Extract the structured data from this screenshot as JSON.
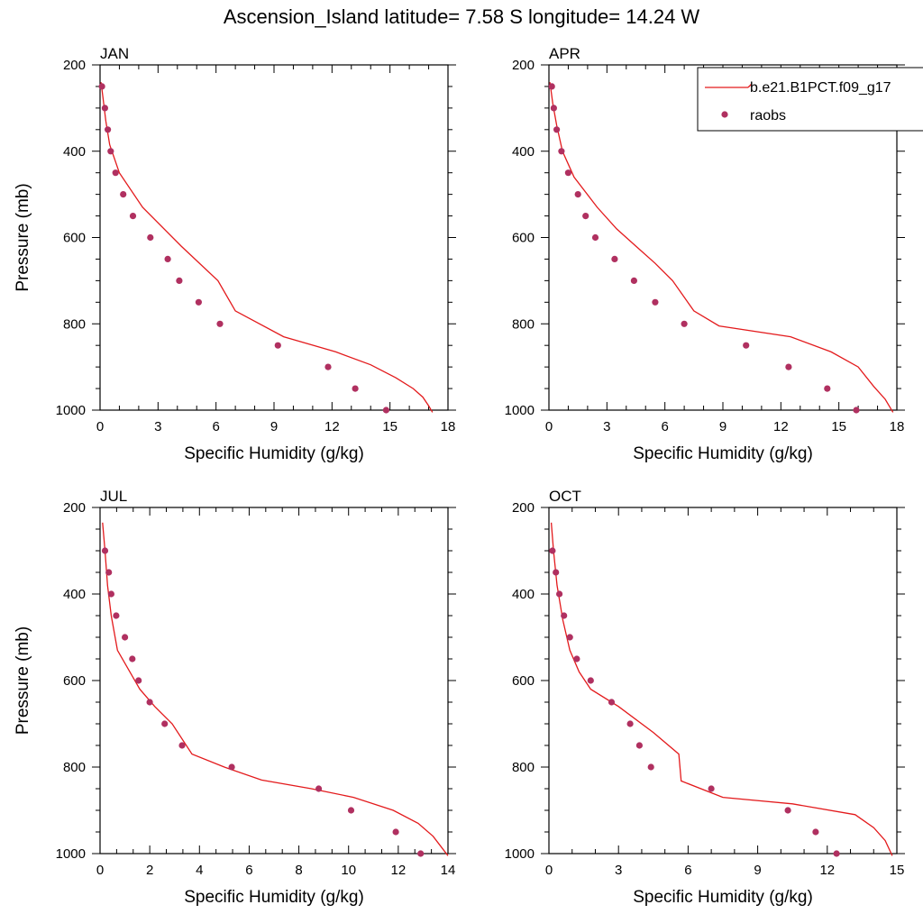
{
  "title": "Ascension_Island  latitude= 7.58 S longitude= 14.24 W",
  "colors": {
    "model": "#e31a1c",
    "obs": "#b03060",
    "axis": "#000000"
  },
  "legend": {
    "model_label": "b.e21.B1PCT.f09_g17",
    "obs_label": "raobs",
    "placement": "top-right of APR panel"
  },
  "chart_data": [
    {
      "type": "line",
      "panel": "JAN",
      "xlabel": "Specific Humidity (g/kg)",
      "ylabel": "Pressure (mb)",
      "xlim": [
        0,
        18
      ],
      "ylim": [
        200,
        1000
      ],
      "y_inverted": true,
      "xticks": [
        0,
        3,
        6,
        9,
        12,
        15,
        18
      ],
      "yticks": [
        200,
        400,
        600,
        800,
        1000
      ],
      "series": [
        {
          "name": "b.e21.B1PCT.f09_g17",
          "style": "line",
          "x": [
            0.05,
            0.15,
            0.3,
            0.5,
            1.0,
            2.2,
            4.2,
            6.1,
            7.0,
            9.5,
            12.2,
            14.0,
            15.3,
            16.2,
            16.7,
            17.0,
            17.2
          ],
          "y": [
            240,
            275,
            330,
            385,
            450,
            530,
            620,
            700,
            770,
            830,
            865,
            895,
            925,
            950,
            970,
            990,
            1005
          ]
        },
        {
          "name": "raobs",
          "style": "scatter",
          "x": [
            0.1,
            0.25,
            0.4,
            0.55,
            0.8,
            1.2,
            1.7,
            2.6,
            3.5,
            4.1,
            5.1,
            6.2,
            9.2,
            11.8,
            13.2,
            14.8
          ],
          "y": [
            250,
            300,
            350,
            400,
            450,
            500,
            550,
            600,
            650,
            700,
            750,
            800,
            850,
            900,
            950,
            1000
          ]
        }
      ]
    },
    {
      "type": "line",
      "panel": "APR",
      "xlabel": "Specific Humidity (g/kg)",
      "ylabel": "",
      "xlim": [
        0,
        18
      ],
      "ylim": [
        200,
        1000
      ],
      "y_inverted": true,
      "xticks": [
        0,
        3,
        6,
        9,
        12,
        15,
        18
      ],
      "yticks": [
        200,
        400,
        600,
        800,
        1000
      ],
      "series": [
        {
          "name": "b.e21.B1PCT.f09_g17",
          "style": "line",
          "x": [
            0.05,
            0.2,
            0.4,
            0.7,
            1.3,
            2.5,
            3.5,
            4.5,
            5.5,
            6.4,
            7.5,
            8.8,
            12.5,
            14.6,
            16.0,
            16.8,
            17.4,
            17.8
          ],
          "y": [
            240,
            290,
            340,
            400,
            460,
            530,
            580,
            620,
            660,
            700,
            770,
            805,
            830,
            865,
            900,
            945,
            975,
            1005
          ]
        },
        {
          "name": "raobs",
          "style": "scatter",
          "x": [
            0.15,
            0.25,
            0.4,
            0.65,
            1.0,
            1.5,
            1.9,
            2.4,
            3.4,
            4.4,
            5.5,
            7.0,
            10.2,
            12.4,
            14.4,
            15.9
          ],
          "y": [
            250,
            300,
            350,
            400,
            450,
            500,
            550,
            600,
            650,
            700,
            750,
            800,
            850,
            900,
            950,
            1000
          ]
        }
      ]
    },
    {
      "type": "line",
      "panel": "JUL",
      "xlabel": "Specific Humidity (g/kg)",
      "ylabel": "Pressure (mb)",
      "xlim": [
        0,
        14
      ],
      "ylim": [
        200,
        1000
      ],
      "y_inverted": true,
      "xticks": [
        0,
        2,
        4,
        6,
        8,
        10,
        12,
        14
      ],
      "yticks": [
        200,
        400,
        600,
        800,
        1000
      ],
      "series": [
        {
          "name": "b.e21.B1PCT.f09_g17",
          "style": "line",
          "x": [
            0.1,
            0.2,
            0.3,
            0.45,
            0.7,
            1.2,
            1.6,
            2.2,
            2.9,
            3.7,
            5.0,
            6.5,
            8.5,
            10.2,
            11.8,
            12.8,
            13.4,
            13.8,
            14.0
          ],
          "y": [
            235,
            300,
            380,
            450,
            530,
            580,
            620,
            660,
            700,
            770,
            800,
            830,
            850,
            870,
            900,
            930,
            960,
            990,
            1005
          ]
        },
        {
          "name": "raobs",
          "style": "scatter",
          "x": [
            0.2,
            0.35,
            0.45,
            0.65,
            1.0,
            1.3,
            1.55,
            2.0,
            2.6,
            3.3,
            5.3,
            8.8,
            10.1,
            11.9,
            12.9
          ],
          "y": [
            300,
            350,
            400,
            450,
            500,
            550,
            600,
            650,
            700,
            750,
            800,
            850,
            900,
            950,
            1000
          ]
        }
      ]
    },
    {
      "type": "line",
      "panel": "OCT",
      "xlabel": "Specific Humidity (g/kg)",
      "ylabel": "",
      "xlim": [
        0,
        15
      ],
      "ylim": [
        200,
        1000
      ],
      "y_inverted": true,
      "xticks": [
        0,
        3,
        6,
        9,
        12,
        15
      ],
      "yticks": [
        200,
        400,
        600,
        800,
        1000
      ],
      "series": [
        {
          "name": "b.e21.B1PCT.f09_g17",
          "style": "line",
          "x": [
            0.1,
            0.2,
            0.35,
            0.6,
            0.9,
            1.3,
            1.8,
            3.0,
            4.5,
            5.6,
            5.7,
            7.5,
            10.5,
            13.2,
            14.0,
            14.5,
            14.8
          ],
          "y": [
            235,
            300,
            380,
            460,
            530,
            580,
            620,
            660,
            720,
            770,
            832,
            870,
            885,
            910,
            940,
            970,
            1005
          ]
        },
        {
          "name": "raobs",
          "style": "scatter",
          "x": [
            0.15,
            0.3,
            0.45,
            0.65,
            0.9,
            1.2,
            1.8,
            2.7,
            3.5,
            3.9,
            4.4,
            7.0,
            10.3,
            11.5,
            12.4
          ],
          "y": [
            300,
            350,
            400,
            450,
            500,
            550,
            600,
            650,
            700,
            750,
            800,
            850,
            900,
            950,
            1000
          ]
        }
      ]
    }
  ]
}
